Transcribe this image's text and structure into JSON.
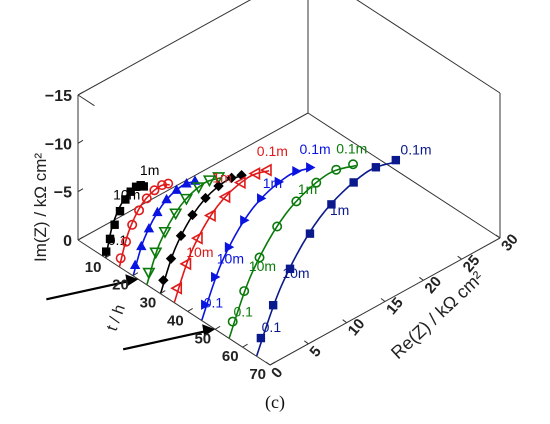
{
  "caption": "(c)",
  "chart_data": {
    "type": "scatter",
    "title": "",
    "axes": {
      "vertical": {
        "label": "Im(Z) / kΩ cm²",
        "ticks": [
          "0",
          "-5",
          "-10",
          "-15"
        ],
        "range": [
          0,
          -15
        ]
      },
      "depth": {
        "label": "t / h",
        "ticks": [
          "0",
          "10",
          "20",
          "30",
          "40",
          "50",
          "60",
          "70"
        ],
        "range": [
          0,
          70
        ]
      },
      "horizontal": {
        "label": "Re(Z) / kΩ cm²",
        "ticks": [
          "0",
          "5",
          "10",
          "15",
          "20",
          "25",
          "30"
        ],
        "range": [
          0,
          30
        ]
      }
    },
    "series": [
      {
        "t": 10,
        "color": "#000000",
        "marker": "filled-square",
        "points": [
          [
            0.1,
            -0.6
          ],
          [
            0.6,
            -1.7
          ],
          [
            1.2,
            -2.9
          ],
          [
            1.9,
            -4.0
          ],
          [
            2.6,
            -4.9
          ],
          [
            3.3,
            -5.4
          ],
          [
            4.0,
            -5.6
          ],
          [
            4.6,
            -5.5
          ],
          [
            5.0,
            -5.2
          ]
        ],
        "fit": [
          [
            0.05,
            0
          ],
          [
            0.9,
            -2.9
          ],
          [
            2.2,
            -4.8
          ],
          [
            3.6,
            -5.6
          ],
          [
            5.2,
            -5.3
          ]
        ],
        "labels": [
          {
            "text": "0.1",
            "at": [
              0.3,
              -1.2
            ]
          },
          {
            "text": "10m",
            "at": [
              1.0,
              -5.6
            ]
          },
          {
            "text": "1m",
            "at": [
              4.5,
              -6.6
            ]
          }
        ]
      },
      {
        "t": 15,
        "color": "#e01a1a",
        "marker": "open-circle",
        "points": [
          [
            0.2,
            -0.8
          ],
          [
            0.9,
            -2.2
          ],
          [
            1.7,
            -3.6
          ],
          [
            2.6,
            -4.7
          ],
          [
            3.6,
            -5.5
          ],
          [
            4.6,
            -5.9
          ],
          [
            5.6,
            -6.0
          ],
          [
            6.4,
            -5.8
          ]
        ],
        "fit": [
          [
            0.05,
            0
          ],
          [
            1.2,
            -3.0
          ],
          [
            3.0,
            -5.2
          ],
          [
            5.2,
            -6.0
          ],
          [
            6.6,
            -5.6
          ]
        ],
        "labels": []
      },
      {
        "t": 20,
        "color": "#0a14e0",
        "marker": "filled-triangle-up",
        "points": [
          [
            0.3,
            -1.0
          ],
          [
            1.1,
            -2.6
          ],
          [
            2.1,
            -4.0
          ],
          [
            3.2,
            -5.2
          ],
          [
            4.4,
            -6.0
          ],
          [
            5.7,
            -6.4
          ],
          [
            7.0,
            -6.5
          ],
          [
            8.1,
            -6.3
          ]
        ],
        "fit": [
          [
            0.05,
            0
          ],
          [
            1.5,
            -3.2
          ],
          [
            3.8,
            -5.6
          ],
          [
            6.4,
            -6.5
          ],
          [
            8.4,
            -6.1
          ]
        ],
        "labels": []
      },
      {
        "t": 25,
        "color": "#0a7a0a",
        "marker": "open-triangle-down",
        "points": [
          [
            0.3,
            -1.1
          ],
          [
            1.2,
            -2.8
          ],
          [
            2.4,
            -4.4
          ],
          [
            3.8,
            -5.7
          ],
          [
            5.2,
            -6.6
          ],
          [
            6.8,
            -7.1
          ],
          [
            8.2,
            -7.2
          ],
          [
            9.4,
            -7.0
          ]
        ],
        "fit": [
          [
            0.05,
            0
          ],
          [
            1.7,
            -3.5
          ],
          [
            4.4,
            -6.2
          ],
          [
            7.4,
            -7.2
          ],
          [
            9.7,
            -6.8
          ]
        ],
        "labels": []
      },
      {
        "t": 30,
        "color": "#000000",
        "marker": "filled-diamond",
        "points": [
          [
            0.4,
            -1.2
          ],
          [
            1.4,
            -3.0
          ],
          [
            2.7,
            -4.8
          ],
          [
            4.2,
            -6.3
          ],
          [
            5.9,
            -7.3
          ],
          [
            7.6,
            -7.8
          ],
          [
            9.3,
            -7.9
          ],
          [
            10.6,
            -7.6
          ]
        ],
        "fit": [
          [
            0.05,
            0
          ],
          [
            2.0,
            -3.9
          ],
          [
            5.0,
            -6.8
          ],
          [
            8.4,
            -7.9
          ],
          [
            10.9,
            -7.4
          ]
        ],
        "labels": []
      },
      {
        "t": 35,
        "color": "#e01a1a",
        "marker": "open-triangle-left",
        "points": [
          [
            0.4,
            -1.3
          ],
          [
            1.6,
            -3.3
          ],
          [
            3.1,
            -5.3
          ],
          [
            4.8,
            -6.9
          ],
          [
            6.7,
            -8.0
          ],
          [
            8.7,
            -8.6
          ],
          [
            10.6,
            -8.7
          ],
          [
            12.1,
            -8.4
          ]
        ],
        "fit": [
          [
            0.05,
            0
          ],
          [
            2.3,
            -4.3
          ],
          [
            5.7,
            -7.5
          ],
          [
            9.6,
            -8.7
          ],
          [
            12.4,
            -8.2
          ]
        ],
        "labels": [
          {
            "text": "1m",
            "at": [
              5.0,
              -10.2
            ]
          },
          {
            "text": "0.1m",
            "at": [
              10.8,
              -10.4
            ]
          },
          {
            "text": "10m",
            "at": [
              1.6,
              -4.0
            ]
          }
        ]
      },
      {
        "t": 45,
        "color": "#0a14e0",
        "marker": "filled-triangle-right",
        "points": [
          [
            0.5,
            -1.4
          ],
          [
            1.8,
            -3.7
          ],
          [
            3.6,
            -6.0
          ],
          [
            5.6,
            -7.9
          ],
          [
            7.8,
            -9.2
          ],
          [
            10.1,
            -9.9
          ],
          [
            12.4,
            -10.0
          ],
          [
            14.2,
            -9.6
          ]
        ],
        "fit": [
          [
            0.05,
            0
          ],
          [
            2.7,
            -4.9
          ],
          [
            6.6,
            -8.6
          ],
          [
            11.2,
            -10.0
          ],
          [
            14.6,
            -9.4
          ]
        ],
        "labels": [
          {
            "text": "0.1",
            "at": [
              0.3,
              -1.2
            ]
          },
          {
            "text": "10m",
            "at": [
              2.0,
              -5.0
            ]
          },
          {
            "text": "1m",
            "at": [
              8.0,
              -10.2
            ]
          },
          {
            "text": "0.1m",
            "at": [
              12.8,
              -11.6
            ]
          }
        ]
      },
      {
        "t": 55,
        "color": "#0a7a0a",
        "marker": "open-circle",
        "points": [
          [
            0.5,
            -1.5
          ],
          [
            2.0,
            -4.0
          ],
          [
            4.0,
            -6.6
          ],
          [
            6.3,
            -8.8
          ],
          [
            8.8,
            -10.3
          ],
          [
            11.4,
            -11.1
          ],
          [
            14.0,
            -11.3
          ],
          [
            16.2,
            -10.9
          ]
        ],
        "fit": [
          [
            0.05,
            0
          ],
          [
            3.0,
            -5.4
          ],
          [
            7.4,
            -9.6
          ],
          [
            12.6,
            -11.3
          ],
          [
            16.6,
            -10.6
          ]
        ],
        "labels": [
          {
            "text": "0.1",
            "at": [
              0.6,
              -2.0
            ]
          },
          {
            "text": "10m",
            "at": [
              2.6,
              -5.8
            ]
          },
          {
            "text": "1m",
            "at": [
              9.0,
              -11.0
            ]
          },
          {
            "text": "0.1m",
            "at": [
              14.0,
              -13.0
            ]
          }
        ]
      },
      {
        "t": 65,
        "color": "#0a1a8c",
        "marker": "filled-square",
        "points": [
          [
            0.6,
            -1.6
          ],
          [
            2.2,
            -4.3
          ],
          [
            4.4,
            -7.1
          ],
          [
            7.0,
            -9.6
          ],
          [
            9.8,
            -11.4
          ],
          [
            12.7,
            -12.4
          ],
          [
            15.6,
            -12.7
          ],
          [
            18.2,
            -12.3
          ]
        ],
        "fit": [
          [
            0.05,
            0
          ],
          [
            3.4,
            -6.0
          ],
          [
            8.3,
            -10.7
          ],
          [
            14.2,
            -12.7
          ],
          [
            18.6,
            -12.0
          ]
        ],
        "labels": [
          {
            "text": "0.1",
            "at": [
              0.7,
              -2.2
            ]
          },
          {
            "text": "10m",
            "at": [
              3.4,
              -6.6
            ]
          },
          {
            "text": "1m",
            "at": [
              9.6,
              -10.4
            ]
          },
          {
            "text": "0.1m",
            "at": [
              18.8,
              -12.6
            ]
          }
        ]
      }
    ],
    "annotations": [
      {
        "type": "arrow",
        "at_t": 22,
        "color": "#000000"
      },
      {
        "type": "arrow",
        "at_t": 50,
        "color": "#000000"
      }
    ]
  }
}
